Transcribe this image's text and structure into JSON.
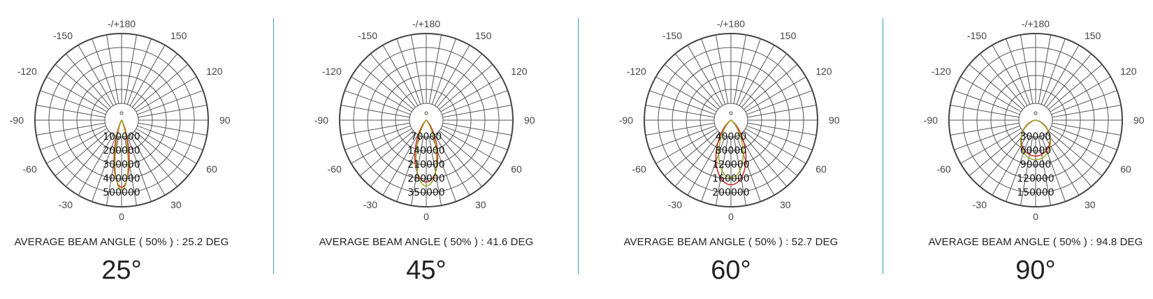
{
  "chart_data": [
    {
      "type": "polar",
      "angle_labels": [
        "-/+180",
        "-150",
        "150",
        "-120",
        "120",
        "-90",
        "90",
        "-60",
        "60",
        "-30",
        "30",
        "0"
      ],
      "ring_labels": [
        "100000",
        "200000",
        "300000",
        "400000",
        "500000"
      ],
      "r_max": 500000,
      "series": [
        {
          "color": "#cc2222",
          "peak": 480000,
          "half_angle_deg": 12.6
        },
        {
          "color": "#99aa22",
          "peak": 500000,
          "half_angle_deg": 10.5
        }
      ],
      "caption": "AVERAGE BEAM ANGLE ( 50% ) : 25.2 DEG",
      "big_label": "25°"
    },
    {
      "type": "polar",
      "angle_labels": [
        "-/+180",
        "-150",
        "150",
        "-120",
        "120",
        "-90",
        "90",
        "-60",
        "60",
        "-30",
        "30",
        "0"
      ],
      "ring_labels": [
        "70000",
        "140000",
        "210000",
        "280000",
        "350000"
      ],
      "r_max": 350000,
      "series": [
        {
          "color": "#cc2222",
          "peak": 310000,
          "half_angle_deg": 20.8
        },
        {
          "color": "#99aa22",
          "peak": 330000,
          "half_angle_deg": 17.5
        }
      ],
      "caption": "AVERAGE BEAM ANGLE ( 50% ) : 41.6 DEG",
      "big_label": "45°"
    },
    {
      "type": "polar",
      "angle_labels": [
        "-/+180",
        "-150",
        "150",
        "-120",
        "120",
        "-90",
        "90",
        "-60",
        "60",
        "-30",
        "30",
        "0"
      ],
      "ring_labels": [
        "40000",
        "80000",
        "120000",
        "160000",
        "200000"
      ],
      "r_max": 200000,
      "series": [
        {
          "color": "#cc2222",
          "peak": 185000,
          "half_angle_deg": 26.4
        },
        {
          "color": "#99aa22",
          "peak": 165000,
          "half_angle_deg": 24.0
        }
      ],
      "caption": "AVERAGE BEAM ANGLE ( 50% ) : 52.7 DEG",
      "big_label": "60°"
    },
    {
      "type": "polar",
      "angle_labels": [
        "-/+180",
        "-150",
        "150",
        "-120",
        "120",
        "-90",
        "90",
        "-60",
        "60",
        "-30",
        "30",
        "0"
      ],
      "ring_labels": [
        "30000",
        "60000",
        "90000",
        "120000",
        "150000"
      ],
      "r_max": 150000,
      "series": [
        {
          "color": "#cc2222",
          "peak": 77000,
          "half_angle_deg": 47.4
        },
        {
          "color": "#99aa22",
          "peak": 85000,
          "half_angle_deg": 44.0
        }
      ],
      "caption": "AVERAGE BEAM ANGLE ( 50% ) : 94.8 DEG",
      "big_label": "90°"
    }
  ]
}
